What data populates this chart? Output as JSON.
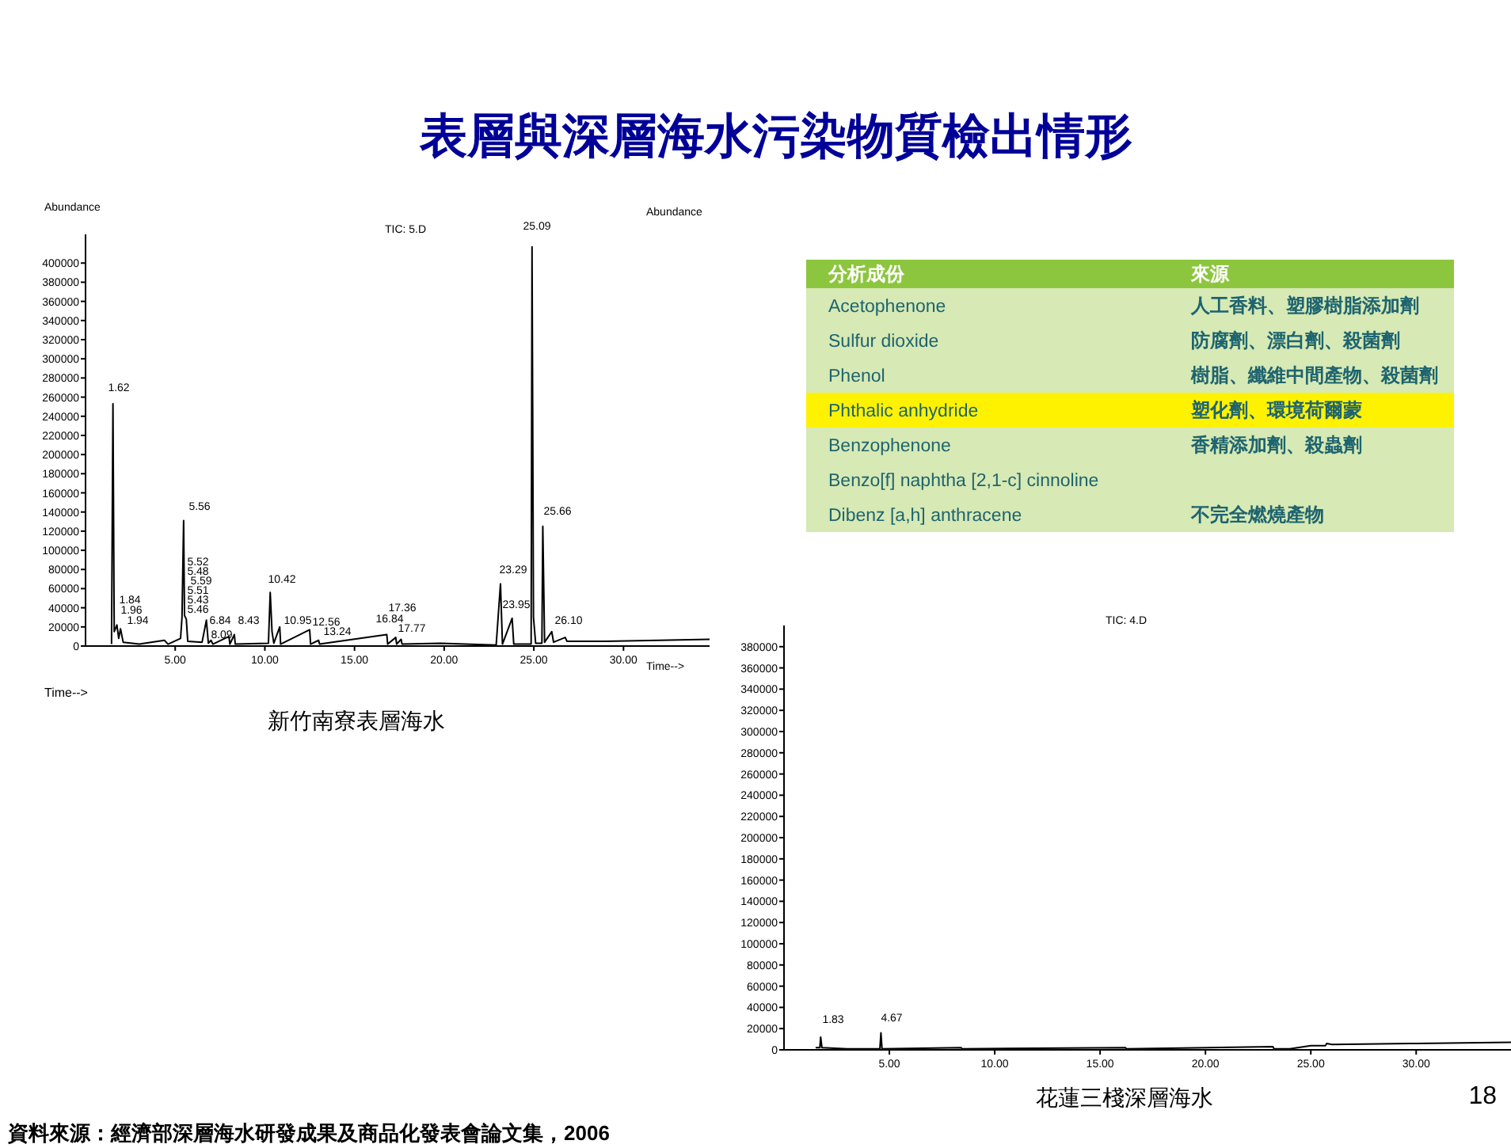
{
  "chart_data": [
    {
      "type": "other",
      "title": "表層與深層海水污染物質檢出情形",
      "annotations": [
        "資料來源：經濟部深層海水研發成果及商品化發表會論文集，2006",
        "18"
      ]
    },
    {
      "type": "line",
      "title": "TIC: 5.D",
      "xlabel": "Time-->",
      "ylabel": "Abundance",
      "color": "#000000",
      "line_style": "solid",
      "x": [
        1.45,
        1.53,
        1.6,
        1.75,
        1.85,
        1.95,
        2.1,
        3.0,
        4.4,
        4.6,
        5.3,
        5.38,
        5.47,
        5.52,
        5.62,
        5.7,
        6.5,
        6.74,
        6.85,
        7.0,
        7.1,
        8.0,
        8.05,
        8.3,
        8.35,
        10.2,
        10.3,
        10.4,
        10.5,
        10.83,
        10.88,
        12.5,
        12.55,
        13.0,
        13.05,
        16.8,
        16.85,
        17.3,
        17.35,
        17.6,
        17.65,
        19.8,
        22.9,
        23.14,
        23.25,
        23.79,
        23.88,
        24.85,
        24.9,
        24.98,
        25.1,
        25.45,
        25.5,
        25.6,
        26.0,
        26.1,
        26.75,
        26.85,
        29.0,
        32.0,
        34.8
      ],
      "values": [
        2000,
        253000,
        15000,
        22000,
        8000,
        18000,
        4000,
        2000,
        6000,
        2000,
        8000,
        30000,
        131000,
        32000,
        28000,
        5000,
        4000,
        27000,
        3000,
        6000,
        2000,
        10000,
        2000,
        12000,
        2000,
        3000,
        56000,
        15000,
        3000,
        20000,
        2000,
        17000,
        2000,
        6000,
        2000,
        12000,
        2000,
        9000,
        2000,
        7000,
        2000,
        3000,
        1000,
        65000,
        2000,
        29000,
        2000,
        2000,
        417000,
        30000,
        3000,
        3000,
        125000,
        4000,
        15000,
        4000,
        9000,
        5000,
        5000,
        6000,
        7000
      ],
      "xlim": [
        0,
        34.8
      ],
      "ylim": [
        0,
        430000
      ],
      "xticks": [
        {
          "value": 5,
          "label": "5.00"
        },
        {
          "value": 10,
          "label": "10.00"
        },
        {
          "value": 15,
          "label": "15.00"
        },
        {
          "value": 20,
          "label": "20.00"
        },
        {
          "value": 25,
          "label": "25.00"
        },
        {
          "value": 30,
          "label": "30.00"
        }
      ],
      "yticks": [
        0,
        20000,
        40000,
        60000,
        80000,
        100000,
        120000,
        140000,
        160000,
        180000,
        200000,
        220000,
        240000,
        260000,
        280000,
        300000,
        320000,
        340000,
        360000,
        380000,
        400000
      ],
      "annotations": [
        "1.62",
        "1.84",
        "1.96",
        "1.94",
        "5.56",
        "5.52",
        "5.48",
        "5.59",
        "5.51",
        "5.43",
        "5.46",
        "6.84",
        "8.09",
        "8.43",
        "10.42",
        "10.95",
        "12.56",
        "13.24",
        "16.84",
        "17.36",
        "17.77",
        "23.29",
        "23.95",
        "25.09",
        "25.66",
        "26.10",
        "Time-->",
        "新竹南寮表層海水",
        "Abundance"
      ]
    },
    {
      "type": "other",
      "categories": [
        "分析成份",
        "來源"
      ],
      "y_categories": [
        "Acetophenone",
        "Sulfur dioxide",
        "Phenol",
        "Phthalic anhydride",
        "Benzophenone",
        "Benzo[f] naphtha [2,1-c] cinnoline",
        "Dibenz [a,h] anthracene"
      ],
      "cell_labels": [
        [
          "人工香料、塑膠樹脂添加劑"
        ],
        [
          "防腐劑、漂白劑、殺菌劑"
        ],
        [
          "樹脂、纖維中間產物、殺菌劑"
        ],
        [
          "塑化劑、環境荷爾蒙"
        ],
        [
          "香精添加劑、殺蟲劑"
        ],
        [
          null
        ],
        [
          "不完全燃燒產物"
        ]
      ],
      "colors": [
        "#8cc63e",
        "#d7e9b4",
        "#d7e9b4",
        "#d7e9b4",
        "#fff200",
        "#d7e9b4",
        "#d7e9b4",
        "#d7e9b4"
      ]
    },
    {
      "type": "line",
      "title": "TIC: 4.D",
      "color": "#000000",
      "line_style": "solid",
      "x": [
        1.5,
        1.7,
        1.74,
        1.8,
        3.0,
        4.55,
        4.6,
        4.65,
        8.4,
        8.45,
        16.2,
        16.25,
        23.2,
        23.25,
        24.0,
        25.0,
        25.7,
        25.75,
        26.0,
        30.0,
        34.5
      ],
      "values": [
        2000,
        2000,
        12000,
        2000,
        1000,
        1000,
        16000,
        1000,
        2000,
        1000,
        2000,
        1000,
        3000,
        1000,
        1000,
        4000,
        4000,
        6000,
        5000,
        6000,
        7000
      ],
      "xlim": [
        0,
        34.5
      ],
      "ylim": [
        0,
        400000
      ],
      "xticks": [
        {
          "value": 5,
          "label": "5.00"
        },
        {
          "value": 10,
          "label": "10.00"
        },
        {
          "value": 15,
          "label": "15.00"
        },
        {
          "value": 20,
          "label": "20.00"
        },
        {
          "value": 25,
          "label": "25.00"
        },
        {
          "value": 30,
          "label": "30.00"
        }
      ],
      "yticks": [
        0,
        20000,
        40000,
        60000,
        80000,
        100000,
        120000,
        140000,
        160000,
        180000,
        200000,
        220000,
        240000,
        260000,
        280000,
        300000,
        320000,
        340000,
        360000,
        380000
      ],
      "annotations": [
        "1.83",
        "4.67",
        "花蓮三棧深層海水"
      ]
    }
  ]
}
